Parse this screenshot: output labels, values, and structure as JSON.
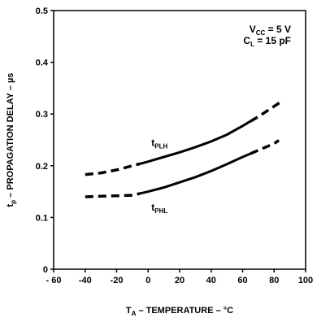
{
  "chart_data": {
    "type": "line",
    "xlabel": {
      "main": "T",
      "sub": "A",
      "rest": " – TEMPERATURE – °C"
    },
    "ylabel": {
      "main": "t",
      "sub": "p",
      "rest": " – PROPAGATION DELAY – µs"
    },
    "xlim": [
      -60,
      100
    ],
    "ylim": [
      0,
      0.5
    ],
    "xticks": [
      -60,
      -40,
      -20,
      0,
      20,
      40,
      60,
      80,
      100
    ],
    "yticks": [
      0,
      0.1,
      0.2,
      0.3,
      0.4,
      0.5
    ],
    "xtick_labels": [
      "- 60",
      "-40",
      "-20",
      "0",
      "20",
      "40",
      "60",
      "80",
      "100"
    ],
    "ytick_labels": [
      "0",
      "0.1",
      "0.2",
      "0.3",
      "0.4",
      "0.5"
    ],
    "grid": false,
    "annotations": [
      {
        "main": "V",
        "sub": "CC",
        "rest": " = 5 V"
      },
      {
        "main": "C",
        "sub": "L",
        "rest": " = 15 pF"
      }
    ],
    "series": [
      {
        "name": {
          "main": "t",
          "sub": "PLH"
        },
        "x": [
          -40,
          -30,
          -20,
          -10,
          0,
          10,
          20,
          30,
          40,
          50,
          60,
          70,
          80,
          85
        ],
        "y": [
          0.183,
          0.186,
          0.192,
          0.2,
          0.208,
          0.217,
          0.226,
          0.236,
          0.247,
          0.26,
          0.277,
          0.295,
          0.315,
          0.325
        ],
        "dash_ranges": [
          [
            -40,
            -5
          ],
          [
            65,
            85
          ]
        ]
      },
      {
        "name": {
          "main": "t",
          "sub": "PHL"
        },
        "x": [
          -40,
          -30,
          -20,
          -10,
          0,
          10,
          20,
          30,
          40,
          50,
          60,
          70,
          80,
          83
        ],
        "y": [
          0.14,
          0.141,
          0.142,
          0.143,
          0.15,
          0.158,
          0.168,
          0.178,
          0.19,
          0.203,
          0.217,
          0.23,
          0.243,
          0.249
        ],
        "dash_ranges": [
          [
            -40,
            -5
          ],
          [
            65,
            85
          ]
        ]
      }
    ]
  }
}
